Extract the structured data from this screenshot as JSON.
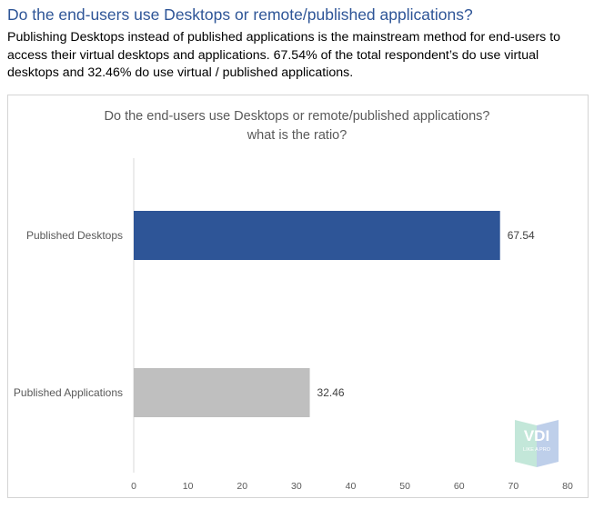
{
  "header": {
    "title": "Do the end-users use Desktops or remote/published applications?",
    "description_lines": [
      "Publishing Desktops instead of published applications is the mainstream method for end-users to",
      "access their virtual desktops and applications. 67.54% of the total respondent’s do use virtual",
      "desktops and 32.46% do use virtual / published applications."
    ]
  },
  "chart_data": {
    "type": "bar",
    "orientation": "horizontal",
    "title_lines": [
      "Do the end-users use Desktops or remote/published applications?",
      "what is the ratio?"
    ],
    "categories": [
      "Published Desktops",
      "Published Applications"
    ],
    "values": [
      67.54,
      32.46
    ],
    "data_labels": [
      "67.54",
      "32.46"
    ],
    "bar_colors": [
      "#2e5597",
      "#bfbfbf"
    ],
    "xlim": [
      0,
      80
    ],
    "xticks": [
      0,
      10,
      20,
      30,
      40,
      50,
      60,
      70,
      80
    ],
    "grid": false,
    "legend": "none",
    "xlabel": "",
    "ylabel": ""
  },
  "watermark": {
    "main": "VDI",
    "sub": "LIKE A PRO",
    "colors": [
      "#b9e3d2",
      "#b3c7e6"
    ]
  }
}
